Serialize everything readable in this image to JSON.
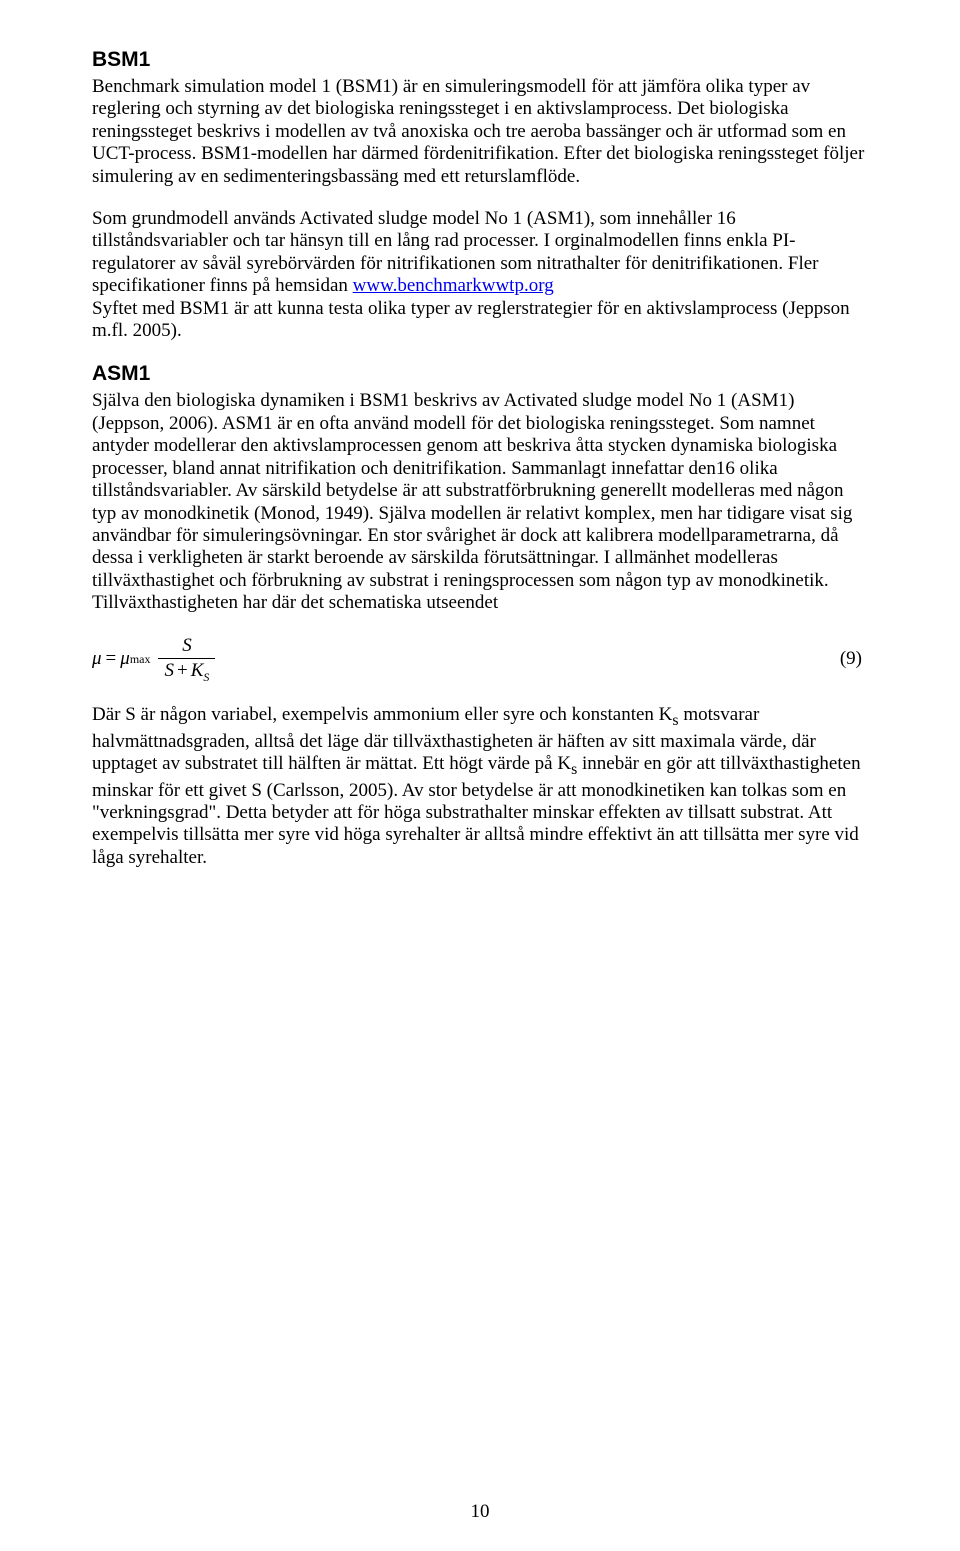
{
  "page": {
    "number": "10"
  },
  "sections": {
    "bsm1": {
      "heading": "BSM1",
      "p1": "Benchmark simulation model 1 (BSM1) är en simuleringsmodell för att jämföra olika typer av reglering och styrning av det biologiska reningssteget i en aktivslamprocess. Det biologiska reningssteget beskrivs i modellen av två anoxiska och tre aeroba bassänger och är utformad som en UCT-process. BSM1-modellen har därmed fördenitrifikation. Efter det biologiska reningssteget följer simulering av en sedimenteringsbassäng med ett returslamflöde.",
      "p2_a": "Som grundmodell används Activated sludge model No 1 (ASM1), som innehåller 16 tillståndsvariabler och tar hänsyn till en lång rad processer. I orginalmodellen finns enkla PI-regulatorer av såväl syrebörvärden för nitrifikationen som nitrathalter för denitrifikationen. Fler specifikationer finns på hemsidan ",
      "p2_link": "www.benchmarkwwtp.org",
      "p2_b": "Syftet med BSM1 är att kunna testa olika typer av reglerstrategier för en aktivslamprocess (Jeppson m.fl. 2005)."
    },
    "asm1": {
      "heading": "ASM1",
      "p1": "Själva den biologiska dynamiken i BSM1 beskrivs av Activated sludge model No 1 (ASM1) (Jeppson, 2006). ASM1 är en ofta använd modell för det biologiska reningssteget. Som namnet antyder modellerar den aktivslamprocessen genom att beskriva åtta stycken dynamiska biologiska processer, bland annat nitrifikation och denitrifikation. Sammanlagt innefattar den16 olika tillståndsvariabler. Av särskild betydelse är att substratförbrukning generellt modelleras med någon typ av monodkinetik (Monod, 1949). Själva modellen är relativt komplex, men har tidigare visat sig användbar för simuleringsövningar. En stor svårighet är dock att kalibrera modellparametrarna, då dessa i verkligheten är starkt beroende av särskilda förutsättningar. I allmänhet modelleras tillväxthastighet och förbrukning av substrat i reningsprocessen som någon typ av monodkinetik. Tillväxthastigheten har där det schematiska utseendet"
    },
    "equation": {
      "mu": "μ",
      "equals": "=",
      "mu_max": "μ",
      "max_sub": "max",
      "numerator": "S",
      "den_S": "S",
      "plus": "+",
      "den_K": "K",
      "den_K_sub": "S",
      "number": "(9)"
    },
    "after_eq": {
      "p1_a": "Där S är någon variabel, exempelvis ammonium eller syre och konstanten K",
      "p1_sub1": "s",
      "p1_b": " motsvarar halvmättnadsgraden, alltså det läge där tillväxthastigheten är häften av sitt maximala värde, där upptaget av substratet till hälften är mättat. Ett högt värde på K",
      "p1_sub2": "s",
      "p1_c": " innebär en gör att tillväxthastigheten minskar för ett givet S (Carlsson, 2005). Av stor betydelse är att monodkinetiken kan tolkas som en \"verkningsgrad\". Detta betyder att för höga substrathalter minskar effekten av tillsatt substrat. Att exempelvis tillsätta mer syre vid höga syrehalter är alltså mindre effektivt än att tillsätta mer syre vid låga syrehalter."
    }
  }
}
